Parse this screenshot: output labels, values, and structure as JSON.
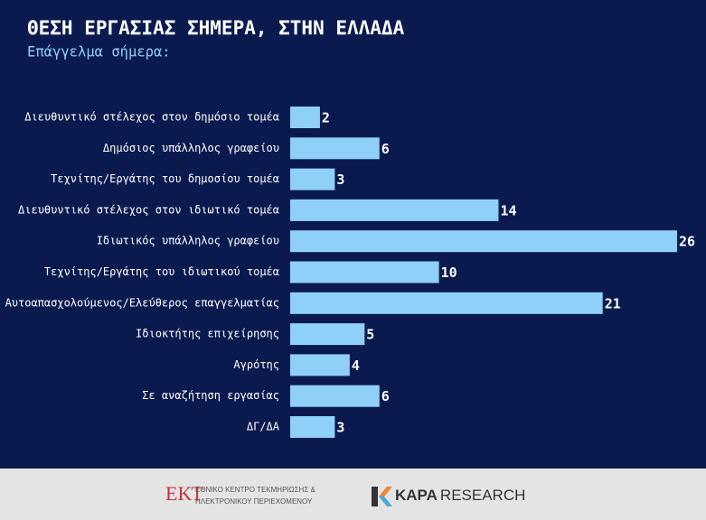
{
  "chart_data": {
    "type": "bar",
    "orientation": "horizontal",
    "title": "ΘΕΣΗ ΕΡΓΑΣΙΑΣ ΣΗΜΕΡΑ, ΣΤΗΝ ΕΛΛΑΔΑ",
    "subtitle": "Επάγγελμα σήμερα:",
    "categories": [
      "Διευθυντικό στέλεχος στον δημόσιο τομέα",
      "Δημόσιος υπάλληλος γραφείου",
      "Τεχνίτης/Εργάτης του δημοσίου τομέα",
      "Διευθυντικό στέλεχος στον ιδιωτικό τομέα",
      "Ιδιωτικός υπάλληλος γραφείου",
      "Τεχνίτης/Εργάτης του ιδιωτικού τομέα",
      "Αυτοαπασχολούμενος/Ελεύθερος επαγγελματίας",
      "Ιδιοκτήτης επιχείρησης",
      "Αγρότης",
      "Σε αναζήτηση εργασίας",
      "ΔΓ/ΔΑ"
    ],
    "values": [
      2,
      6,
      3,
      14,
      26,
      10,
      21,
      5,
      4,
      6,
      3
    ],
    "color": "#8fd0f8"
  },
  "footer": {
    "ekt_logo": "ΕΚΤ",
    "ekt_line1": "ΕΘΝΙΚΟ ΚΕΝΤΡΟ ΤΕΚΜΗΡΙΩΣΗΣ &",
    "ekt_line2": "ΗΛΕΚΤΡΟΝΙΚΟΥ ΠΕΡΙΕΧΟΜΕΝΟΥ",
    "kapa_bold": "KAPA",
    "kapa_rest": "RESEARCH"
  }
}
